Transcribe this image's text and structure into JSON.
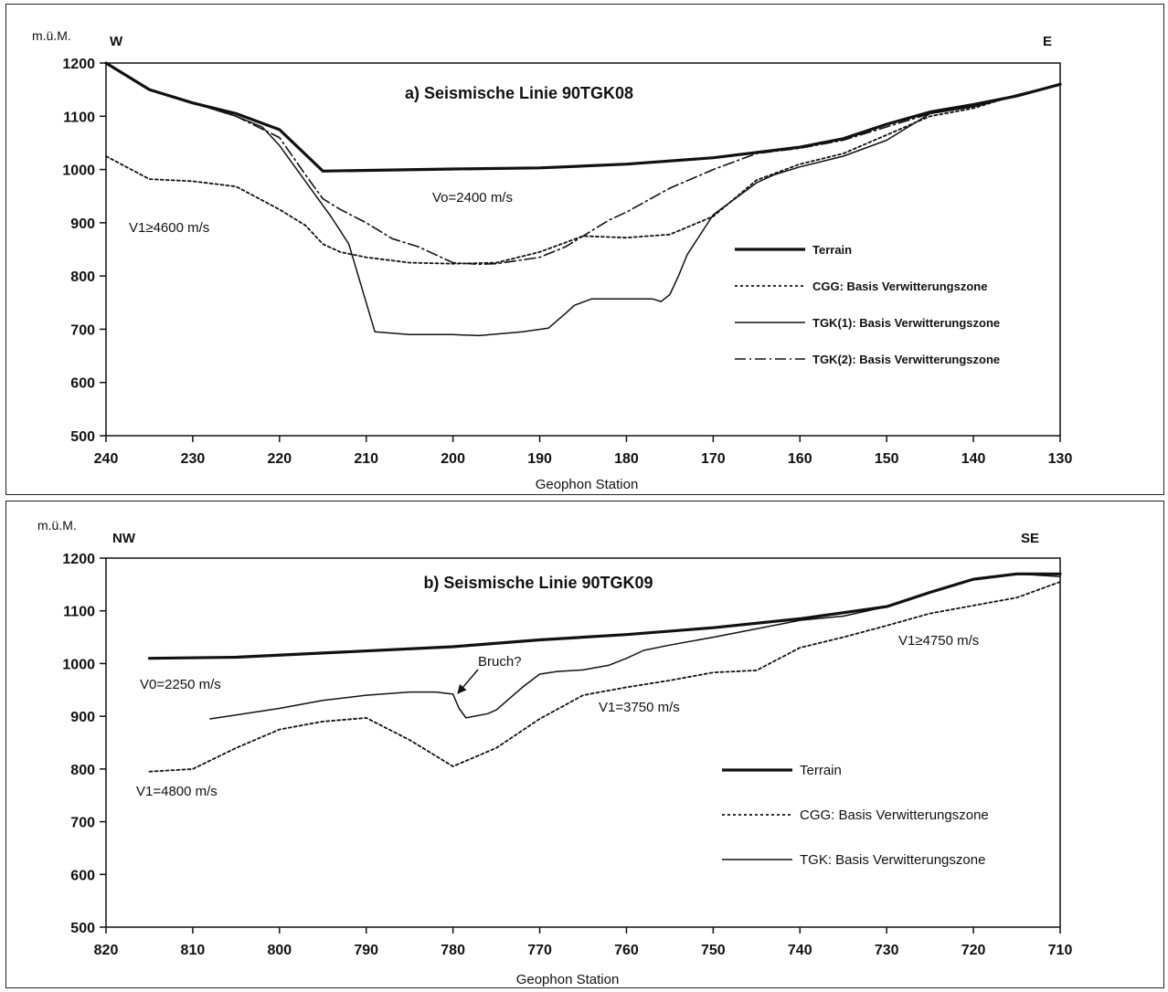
{
  "chart_data": [
    {
      "type": "line",
      "title": "a) Seismische Linie 90TGK08",
      "ylabel": "m.ü.M.",
      "xlabel": "Geophon Station",
      "left_label": "W",
      "right_label": "E",
      "xlim": [
        240,
        130
      ],
      "ylim": [
        500,
        1200
      ],
      "xticks": [
        240,
        230,
        220,
        210,
        200,
        190,
        180,
        170,
        160,
        150,
        140,
        130
      ],
      "yticks": [
        1200,
        1100,
        1000,
        900,
        800,
        700,
        600,
        500
      ],
      "grid": false,
      "legend_position": "right",
      "annotations": [
        {
          "text": "Vo=2400  m/s",
          "x": 197,
          "y": 960
        },
        {
          "text": "V1≥4600  m/s",
          "x": 230,
          "y": 885
        }
      ],
      "series": [
        {
          "name": "Terrain",
          "style": "thick-solid",
          "x": [
            240,
            235,
            230,
            225,
            220,
            215,
            200,
            190,
            180,
            170,
            160,
            155,
            150,
            145,
            140,
            135,
            130
          ],
          "y": [
            1200,
            1150,
            1125,
            1105,
            1075,
            997,
            1001,
            1003,
            1010,
            1022,
            1042,
            1058,
            1085,
            1108,
            1122,
            1138,
            1160
          ]
        },
        {
          "name": "CGG: Basis Verwitterungszone",
          "style": "dotted",
          "x": [
            240,
            235,
            230,
            225,
            220,
            217,
            215,
            213,
            210,
            205,
            200,
            195,
            190,
            185,
            180,
            175,
            170,
            165,
            160,
            155,
            150,
            145,
            140,
            135,
            130
          ],
          "y": [
            1025,
            982,
            978,
            968,
            925,
            895,
            860,
            845,
            835,
            825,
            823,
            825,
            845,
            875,
            872,
            878,
            912,
            980,
            1010,
            1030,
            1065,
            1100,
            1115,
            1140,
            1160
          ]
        },
        {
          "name": "TGK(1): Basis Verwitterungszone",
          "style": "solid",
          "x": [
            240,
            235,
            230,
            225,
            222,
            220,
            218,
            216,
            214,
            212,
            209,
            205,
            200,
            197,
            192,
            189,
            187,
            186,
            184,
            180,
            177,
            176,
            175,
            174,
            173,
            170,
            165,
            163,
            160,
            155,
            150,
            145,
            140,
            135,
            130
          ],
          "y": [
            1200,
            1150,
            1125,
            1100,
            1080,
            1045,
            1000,
            955,
            910,
            860,
            695,
            690,
            690,
            688,
            695,
            702,
            730,
            745,
            757,
            757,
            757,
            752,
            765,
            800,
            840,
            915,
            975,
            990,
            1005,
            1025,
            1055,
            1105,
            1118,
            1140,
            1160
          ]
        },
        {
          "name": "TGK(2): Basis Verwitterungszone",
          "style": "dash-dot",
          "x": [
            240,
            235,
            230,
            225,
            220,
            217,
            215,
            213,
            210,
            207,
            204,
            200,
            197,
            195,
            190,
            187,
            185,
            182,
            180,
            175,
            170,
            165,
            160,
            155,
            150,
            145,
            140,
            135,
            130
          ],
          "y": [
            1200,
            1150,
            1125,
            1100,
            1060,
            990,
            945,
            925,
            900,
            870,
            855,
            825,
            822,
            823,
            835,
            855,
            875,
            905,
            920,
            965,
            1000,
            1030,
            1040,
            1055,
            1080,
            1105,
            1118,
            1138,
            1160
          ]
        }
      ]
    },
    {
      "type": "line",
      "title": "b) Seismische Linie 90TGK09",
      "ylabel": "m.ü.M.",
      "xlabel": "Geophon Station",
      "left_label": "NW",
      "right_label": "SE",
      "xlim": [
        820,
        710
      ],
      "ylim": [
        500,
        1200
      ],
      "xticks": [
        820,
        810,
        800,
        790,
        780,
        770,
        760,
        750,
        740,
        730,
        720,
        710
      ],
      "yticks": [
        1200,
        1100,
        1000,
        900,
        800,
        700,
        600,
        500
      ],
      "grid": false,
      "legend_position": "right",
      "annotations": [
        {
          "text": "Bruch?",
          "x": 774,
          "y": 1000
        },
        {
          "text": "V0=2250  m/s",
          "x": 809,
          "y": 955
        },
        {
          "text": "V1=3750  m/s",
          "x": 760,
          "y": 905
        },
        {
          "text": "V1=4800  m/s",
          "x": 814,
          "y": 770
        },
        {
          "text": "V1≥4750  m/s",
          "x": 725,
          "y": 1045
        }
      ],
      "series": [
        {
          "name": "Terrain",
          "style": "thick-solid",
          "x": [
            815,
            805,
            795,
            780,
            770,
            760,
            750,
            740,
            730,
            725,
            720,
            715,
            710
          ],
          "y": [
            1010,
            1012,
            1020,
            1032,
            1045,
            1055,
            1068,
            1085,
            1108,
            1135,
            1160,
            1170,
            1170
          ]
        },
        {
          "name": "CGG: Basis Verwitterungszone",
          "style": "dotted",
          "x": [
            815,
            810,
            805,
            800,
            795,
            790,
            785,
            780,
            775,
            770,
            765,
            760,
            755,
            750,
            745,
            740,
            735,
            730,
            725,
            720,
            715,
            710
          ],
          "y": [
            795,
            800,
            840,
            875,
            890,
            897,
            855,
            805,
            840,
            895,
            940,
            955,
            968,
            983,
            987,
            1030,
            1050,
            1072,
            1095,
            1110,
            1125,
            1155
          ]
        },
        {
          "name": "TGK: Basis Verwitterungszone",
          "style": "solid",
          "x": [
            808,
            800,
            795,
            790,
            785,
            782,
            780,
            779.3,
            778.5,
            776,
            775,
            772,
            770,
            768,
            765,
            762,
            760,
            758,
            755,
            750,
            740,
            735,
            730,
            725,
            720,
            715,
            710
          ],
          "y": [
            895,
            915,
            930,
            940,
            946,
            946,
            942,
            915,
            897,
            905,
            912,
            955,
            980,
            985,
            988,
            997,
            1010,
            1025,
            1035,
            1050,
            1082,
            1090,
            1108,
            1135,
            1160,
            1170,
            1165
          ]
        }
      ]
    }
  ]
}
